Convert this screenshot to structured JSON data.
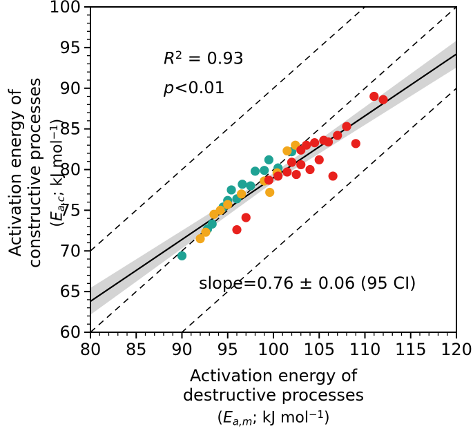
{
  "annotations": {
    "r2": {
      "var": "R",
      "sup": "2",
      "rest": " = 0.93"
    },
    "p": {
      "var": "p",
      "rest": "<0.01"
    },
    "slope": "slope=0.76 ± 0.06 (95 CI)"
  },
  "axis_labels": {
    "y": {
      "line1": "Activation energy of",
      "line2": "constructive processes",
      "math": {
        "open": "(",
        "var": "E",
        "sub": "a,c",
        "mid": "; kJ mol",
        "sup": "−1",
        "close": ")"
      }
    },
    "x": {
      "line1": "Activation energy of",
      "line2": "destructive processes",
      "math": {
        "open": "(",
        "var": "E",
        "sub": "a,m",
        "mid": "; kJ mol",
        "sup": "−1",
        "close": ")"
      }
    }
  },
  "chart_data": {
    "type": "scatter",
    "title": "",
    "xlabel": "Activation energy of destructive processes (Ea,m; kJ mol-1)",
    "ylabel": "Activation energy of constructive processes (Ea,c; kJ mol-1)",
    "xlim": [
      80,
      120
    ],
    "ylim": [
      60,
      100
    ],
    "xticks": [
      80,
      85,
      90,
      95,
      100,
      105,
      110,
      115,
      120
    ],
    "yticks": [
      60,
      65,
      70,
      75,
      80,
      85,
      90,
      95,
      100
    ],
    "minor_tick_step": 1,
    "grid": false,
    "legend": "none",
    "series": [
      {
        "name": "teal",
        "color": "#1fa294",
        "points": [
          [
            90.0,
            69.4
          ],
          [
            92.8,
            72.7
          ],
          [
            93.3,
            73.3
          ],
          [
            94.5,
            75.4
          ],
          [
            95.0,
            76.2
          ],
          [
            95.4,
            77.5
          ],
          [
            96.0,
            76.4
          ],
          [
            96.6,
            78.2
          ],
          [
            97.5,
            78.0
          ],
          [
            98.0,
            79.8
          ],
          [
            99.0,
            79.9
          ],
          [
            99.5,
            81.2
          ],
          [
            100.5,
            80.2
          ],
          [
            102.0,
            82.2
          ]
        ]
      },
      {
        "name": "orange",
        "color": "#f2a71c",
        "points": [
          [
            92.0,
            71.5
          ],
          [
            92.6,
            72.3
          ],
          [
            93.5,
            74.5
          ],
          [
            94.2,
            75.0
          ],
          [
            95.0,
            75.7
          ],
          [
            96.5,
            77.0
          ],
          [
            99.0,
            78.6
          ],
          [
            99.6,
            77.2
          ],
          [
            100.4,
            79.6
          ],
          [
            101.5,
            82.3
          ],
          [
            102.4,
            83.0
          ]
        ]
      },
      {
        "name": "red",
        "color": "#e8211d",
        "points": [
          [
            96.0,
            72.6
          ],
          [
            97.0,
            74.1
          ],
          [
            99.5,
            78.7
          ],
          [
            100.5,
            79.2
          ],
          [
            101.5,
            79.7
          ],
          [
            102.0,
            80.9
          ],
          [
            102.5,
            79.4
          ],
          [
            103.0,
            80.6
          ],
          [
            103.0,
            82.4
          ],
          [
            103.6,
            83.0
          ],
          [
            104.0,
            80.0
          ],
          [
            104.5,
            83.3
          ],
          [
            105.0,
            81.2
          ],
          [
            105.5,
            83.6
          ],
          [
            106.0,
            83.4
          ],
          [
            106.5,
            79.2
          ],
          [
            107.0,
            84.2
          ],
          [
            108.0,
            85.3
          ],
          [
            109.0,
            83.2
          ],
          [
            111.0,
            89.0
          ],
          [
            112.0,
            88.6
          ]
        ]
      }
    ],
    "fit_line": {
      "slope": 0.76,
      "intercept": 3.0,
      "color": "#000000"
    },
    "confidence_band": {
      "center_x": 100,
      "half_width_center": 0.55,
      "half_width_per_unit": 0.055,
      "color": "#c9c9c9",
      "opacity": 0.8
    },
    "dashed_lines": [
      {
        "slope": 1,
        "intercept": -10
      },
      {
        "slope": 1,
        "intercept": -20
      },
      {
        "slope": 1,
        "intercept": -30
      }
    ],
    "stats": {
      "r_squared": 0.93,
      "p_value": "<0.01",
      "slope": "0.76 ± 0.06",
      "ci": "95 CI"
    }
  }
}
